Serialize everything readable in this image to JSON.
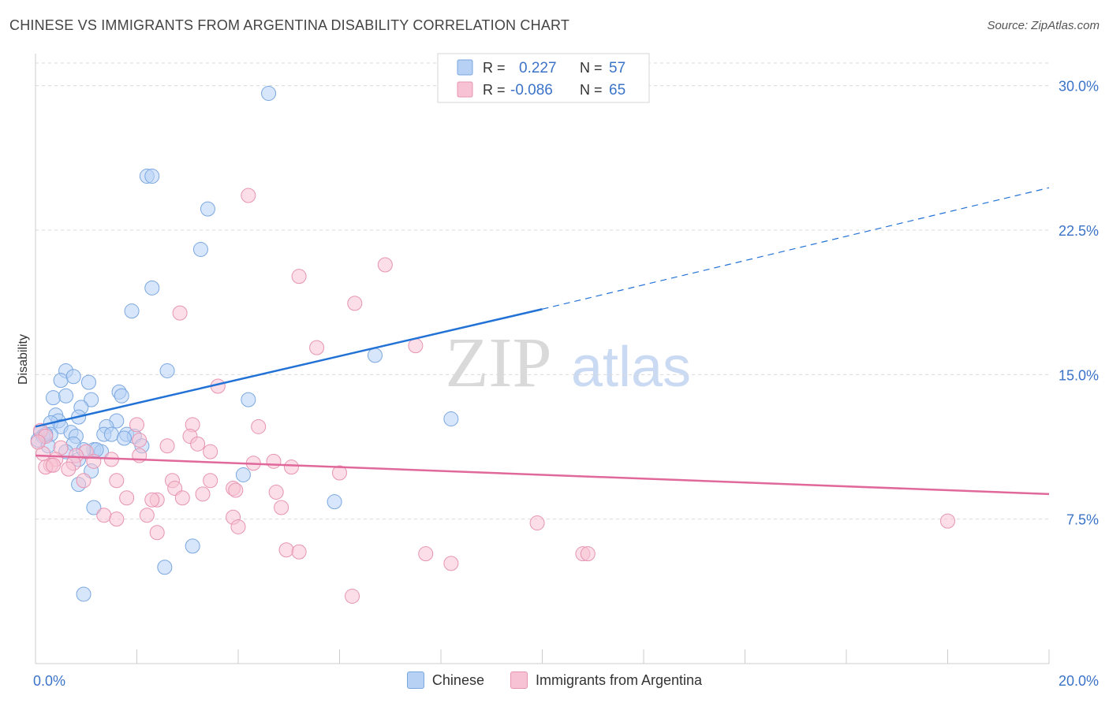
{
  "title": "CHINESE VS IMMIGRANTS FROM ARGENTINA DISABILITY CORRELATION CHART",
  "source": "Source: ZipAtlas.com",
  "watermark": {
    "zip": "ZIP",
    "atlas": "atlas"
  },
  "legend_top": [
    {
      "r_label": "R =",
      "r_value": "0.227",
      "n_label": "N =",
      "n_value": "57"
    },
    {
      "r_label": "R =",
      "r_value": "-0.086",
      "n_label": "N =",
      "n_value": "65"
    }
  ],
  "colors": {
    "chinese_fill": "#b7d1f5",
    "chinese_stroke": "#7aa7e0",
    "chinese_line": "#2272d6",
    "argentina_fill": "#f7c3d4",
    "argentina_stroke": "#e794b2",
    "argentina_line": "#e0689a",
    "value_text": "#3b73c8",
    "grid": "#d9d9d9"
  },
  "chart_data": {
    "type": "scatter",
    "title": "CHINESE VS IMMIGRANTS FROM ARGENTINA DISABILITY CORRELATION CHART",
    "xlabel": "",
    "ylabel": "Disability",
    "xlim": [
      0,
      20
    ],
    "ylim": [
      0,
      31.5
    ],
    "x_tick_labels": [
      {
        "value": 0,
        "label": "0.0%"
      },
      {
        "value": 20,
        "label": "20.0%"
      }
    ],
    "y_tick_labels": [
      {
        "value": 7.5,
        "label": "7.5%"
      },
      {
        "value": 15,
        "label": "15.0%"
      },
      {
        "value": 22.5,
        "label": "22.5%"
      },
      {
        "value": 30,
        "label": "30.0%"
      }
    ],
    "legend_placement": "top-center",
    "grid": true,
    "series": [
      {
        "name": "Chinese",
        "r": 0.227,
        "n": 57,
        "trend": {
          "x0": 0,
          "y0": 12.3,
          "x1": 10,
          "y1": 18.4,
          "dash_x1": 20,
          "dash_y1": 24.7
        },
        "points": [
          [
            4.6,
            29.6
          ],
          [
            2.2,
            25.3
          ],
          [
            2.3,
            25.3
          ],
          [
            3.4,
            23.6
          ],
          [
            3.26,
            21.5
          ],
          [
            2.3,
            19.5
          ],
          [
            1.9,
            18.3
          ],
          [
            2.6,
            15.2
          ],
          [
            6.7,
            16.0
          ],
          [
            0.6,
            15.2
          ],
          [
            0.5,
            14.7
          ],
          [
            0.75,
            14.9
          ],
          [
            1.05,
            14.6
          ],
          [
            0.35,
            13.8
          ],
          [
            0.6,
            13.9
          ],
          [
            1.65,
            14.1
          ],
          [
            1.7,
            13.9
          ],
          [
            1.1,
            13.7
          ],
          [
            4.2,
            13.7
          ],
          [
            0.9,
            13.3
          ],
          [
            0.4,
            12.9
          ],
          [
            0.85,
            12.8
          ],
          [
            0.45,
            12.6
          ],
          [
            0.3,
            12.5
          ],
          [
            0.5,
            12.3
          ],
          [
            1.6,
            12.6
          ],
          [
            8.2,
            12.7
          ],
          [
            0.1,
            12.0
          ],
          [
            0.3,
            11.9
          ],
          [
            0.15,
            11.8
          ],
          [
            0.05,
            11.6
          ],
          [
            0.7,
            12.0
          ],
          [
            0.8,
            11.8
          ],
          [
            1.4,
            12.3
          ],
          [
            1.35,
            11.9
          ],
          [
            1.5,
            11.9
          ],
          [
            1.8,
            11.9
          ],
          [
            1.95,
            11.8
          ],
          [
            1.75,
            11.7
          ],
          [
            0.75,
            11.4
          ],
          [
            1.15,
            11.1
          ],
          [
            1.3,
            11.0
          ],
          [
            2.1,
            11.3
          ],
          [
            1.2,
            11.1
          ],
          [
            0.6,
            11.0
          ],
          [
            0.25,
            11.3
          ],
          [
            1.1,
            10.0
          ],
          [
            0.85,
            10.6
          ],
          [
            4.1,
            9.8
          ],
          [
            0.85,
            9.3
          ],
          [
            5.9,
            8.4
          ],
          [
            1.15,
            8.1
          ],
          [
            3.1,
            6.1
          ],
          [
            2.55,
            5.0
          ],
          [
            0.95,
            3.6
          ],
          [
            0.2,
            11.9
          ],
          [
            0.95,
            11.1
          ]
        ]
      },
      {
        "name": "Immigrants from Argentina",
        "r": -0.086,
        "n": 65,
        "trend": {
          "x0": 0,
          "y0": 10.8,
          "x1": 20,
          "y1": 8.8
        },
        "points": [
          [
            4.2,
            24.3
          ],
          [
            6.9,
            20.7
          ],
          [
            5.2,
            20.1
          ],
          [
            6.3,
            18.7
          ],
          [
            2.85,
            18.2
          ],
          [
            5.55,
            16.4
          ],
          [
            7.5,
            16.5
          ],
          [
            3.6,
            14.4
          ],
          [
            2.0,
            12.4
          ],
          [
            3.1,
            12.4
          ],
          [
            4.4,
            12.3
          ],
          [
            0.1,
            12.1
          ],
          [
            0.2,
            11.8
          ],
          [
            3.05,
            11.8
          ],
          [
            3.2,
            11.4
          ],
          [
            2.05,
            11.6
          ],
          [
            2.6,
            11.3
          ],
          [
            3.45,
            11.0
          ],
          [
            0.5,
            11.2
          ],
          [
            0.15,
            10.9
          ],
          [
            1.0,
            11.0
          ],
          [
            0.8,
            10.8
          ],
          [
            0.4,
            10.6
          ],
          [
            0.75,
            10.4
          ],
          [
            1.5,
            10.6
          ],
          [
            2.05,
            10.8
          ],
          [
            0.3,
            10.3
          ],
          [
            0.2,
            10.2
          ],
          [
            0.35,
            10.3
          ],
          [
            0.65,
            10.1
          ],
          [
            4.3,
            10.4
          ],
          [
            4.7,
            10.5
          ],
          [
            5.05,
            10.2
          ],
          [
            1.15,
            10.5
          ],
          [
            6.0,
            9.9
          ],
          [
            1.6,
            9.5
          ],
          [
            2.7,
            9.5
          ],
          [
            2.75,
            9.1
          ],
          [
            3.45,
            9.5
          ],
          [
            3.9,
            9.1
          ],
          [
            3.95,
            9.0
          ],
          [
            3.3,
            8.8
          ],
          [
            4.75,
            8.9
          ],
          [
            0.95,
            9.5
          ],
          [
            1.8,
            8.6
          ],
          [
            2.4,
            8.5
          ],
          [
            2.3,
            8.5
          ],
          [
            2.9,
            8.6
          ],
          [
            4.85,
            8.1
          ],
          [
            1.35,
            7.7
          ],
          [
            1.6,
            7.5
          ],
          [
            2.2,
            7.7
          ],
          [
            3.9,
            7.6
          ],
          [
            4.0,
            7.1
          ],
          [
            2.4,
            6.8
          ],
          [
            9.9,
            7.3
          ],
          [
            18.0,
            7.4
          ],
          [
            4.95,
            5.9
          ],
          [
            5.2,
            5.8
          ],
          [
            7.7,
            5.7
          ],
          [
            10.8,
            5.7
          ],
          [
            10.9,
            5.7
          ],
          [
            8.2,
            5.2
          ],
          [
            6.25,
            3.5
          ],
          [
            0.05,
            11.5
          ]
        ]
      }
    ]
  }
}
